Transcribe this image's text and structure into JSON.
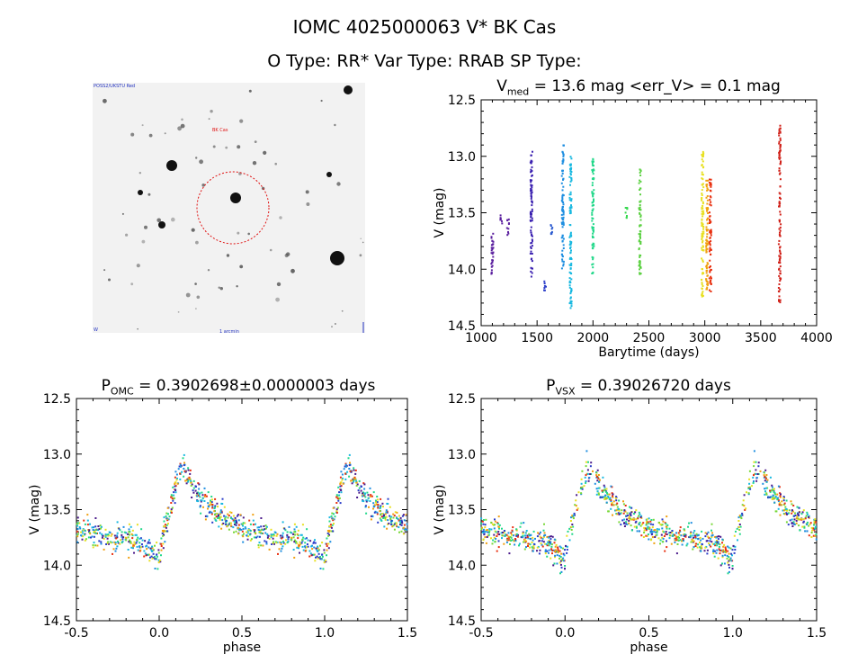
{
  "header": {
    "title": "IOMC 4025000063   V* BK Cas",
    "subtitle": "O Type: RR*  Var Type: RRAB  SP Type:"
  },
  "image_panel": {
    "corner_tl": "POSS2/UKSTU Red",
    "label_top": "BK Cas",
    "corner_bl": "W",
    "label_bottom": "1 arcmin"
  },
  "chart_data": [
    {
      "type": "scatter",
      "id": "time",
      "title_main": "V",
      "title_sub": "med",
      "title_rest": " = 13.6 mag <err_V> = 0.1 mag",
      "xlabel": "Barytime (days)",
      "ylabel": "V (mag)",
      "xlim": [
        1000,
        4000
      ],
      "ylim": [
        14.5,
        12.5
      ],
      "xticks": [
        "1000",
        "1500",
        "2000",
        "2500",
        "3000",
        "3500",
        "4000"
      ],
      "yticks": [
        "12.5",
        "13.0",
        "13.5",
        "14.0",
        "14.5"
      ],
      "clusters": [
        {
          "x": 1100,
          "v_min": 13.65,
          "v_max": 14.1,
          "color": "#5a1f9e"
        },
        {
          "x": 1180,
          "v_min": 13.5,
          "v_max": 13.6,
          "color": "#5a1f9e"
        },
        {
          "x": 1240,
          "v_min": 13.55,
          "v_max": 13.7,
          "color": "#5a1f9e"
        },
        {
          "x": 1450,
          "v_min": 12.95,
          "v_max": 14.1,
          "color": "#3a20b0"
        },
        {
          "x": 1570,
          "v_min": 14.1,
          "v_max": 14.2,
          "color": "#2a3cc8"
        },
        {
          "x": 1630,
          "v_min": 13.6,
          "v_max": 13.7,
          "color": "#2a5ad0"
        },
        {
          "x": 1730,
          "v_min": 12.9,
          "v_max": 14.0,
          "color": "#1e8ee0"
        },
        {
          "x": 1800,
          "v_min": 13.0,
          "v_max": 14.35,
          "color": "#18b8e0"
        },
        {
          "x": 2000,
          "v_min": 13.0,
          "v_max": 14.05,
          "color": "#22d88a"
        },
        {
          "x": 2300,
          "v_min": 13.45,
          "v_max": 13.55,
          "color": "#38d850"
        },
        {
          "x": 2420,
          "v_min": 13.1,
          "v_max": 14.05,
          "color": "#5ad040"
        },
        {
          "x": 2980,
          "v_min": 12.92,
          "v_max": 14.25,
          "color": "#e8e020"
        },
        {
          "x": 3020,
          "v_min": 13.2,
          "v_max": 14.2,
          "color": "#f0a010"
        },
        {
          "x": 3050,
          "v_min": 13.2,
          "v_max": 14.2,
          "color": "#e83010"
        },
        {
          "x": 3670,
          "v_min": 12.72,
          "v_max": 14.3,
          "color": "#d02018"
        }
      ]
    },
    {
      "type": "scatter",
      "id": "phase_omc",
      "title_main": "P",
      "title_sub": "OMC",
      "title_rest": " = 0.3902698±0.0000003 days",
      "xlabel": "phase",
      "ylabel": "V (mag)",
      "xlim": [
        -0.5,
        1.5
      ],
      "ylim": [
        14.5,
        12.5
      ],
      "xticks": [
        "-0.5",
        "0.0",
        "0.5",
        "1.0",
        "1.5"
      ],
      "yticks": [
        "12.5",
        "13.0",
        "13.5",
        "14.0",
        "14.5"
      ],
      "seed": 7
    },
    {
      "type": "scatter",
      "id": "phase_vsx",
      "title_main": "P",
      "title_sub": "VSX",
      "title_rest": " = 0.39026720 days",
      "xlabel": "phase",
      "ylabel": "V (mag)",
      "xlim": [
        -0.5,
        1.5
      ],
      "ylim": [
        14.5,
        12.5
      ],
      "xticks": [
        "-0.5",
        "0.0",
        "0.5",
        "1.0",
        "1.5"
      ],
      "yticks": [
        "12.5",
        "13.0",
        "13.5",
        "14.0",
        "14.5"
      ],
      "seed": 11
    }
  ],
  "colors": {
    "palette": [
      "#4a1a8a",
      "#2a3cc8",
      "#1e8ee0",
      "#18b8e0",
      "#22d88a",
      "#78d838",
      "#e8e020",
      "#f0a010",
      "#e83010"
    ],
    "circle": "#e01010"
  }
}
